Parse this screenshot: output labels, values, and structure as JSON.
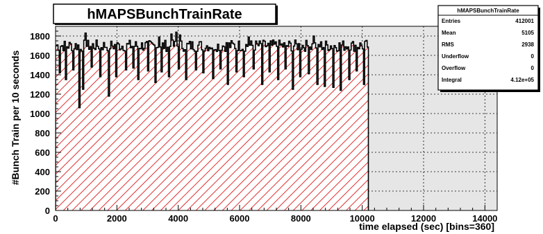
{
  "chart_data": {
    "type": "histogram",
    "title": "hMAPSBunchTrainRate",
    "xlabel": "time elapsed (sec) [bins=360]",
    "ylabel": "#Bunch Train per 10 seconds",
    "xlim": [
      0,
      14400
    ],
    "ylim": [
      0,
      1900
    ],
    "x_ticks": [
      0,
      2000,
      4000,
      6000,
      8000,
      10000,
      12000,
      14000
    ],
    "y_ticks": [
      0,
      200,
      400,
      600,
      800,
      1000,
      1200,
      1400,
      1600,
      1800
    ],
    "bin_width": 40,
    "data_end": 10200,
    "grid": true,
    "fill": "red hatched",
    "baseline": 1700,
    "dips": [
      {
        "x": 120,
        "y": 1420
      },
      {
        "x": 320,
        "y": 1350
      },
      {
        "x": 560,
        "y": 1450
      },
      {
        "x": 760,
        "y": 1060
      },
      {
        "x": 900,
        "y": 1250
      },
      {
        "x": 1180,
        "y": 1480
      },
      {
        "x": 1460,
        "y": 1380
      },
      {
        "x": 1720,
        "y": 1180
      },
      {
        "x": 1960,
        "y": 1380
      },
      {
        "x": 2280,
        "y": 1450
      },
      {
        "x": 2520,
        "y": 1470
      },
      {
        "x": 2700,
        "y": 1350
      },
      {
        "x": 3000,
        "y": 1440
      },
      {
        "x": 3240,
        "y": 1320
      },
      {
        "x": 3460,
        "y": 1430
      },
      {
        "x": 3700,
        "y": 1380
      },
      {
        "x": 4000,
        "y": 1460
      },
      {
        "x": 4240,
        "y": 1350
      },
      {
        "x": 4560,
        "y": 1450
      },
      {
        "x": 4800,
        "y": 1420
      },
      {
        "x": 5120,
        "y": 1360
      },
      {
        "x": 5360,
        "y": 1460
      },
      {
        "x": 5620,
        "y": 1300
      },
      {
        "x": 5880,
        "y": 1430
      },
      {
        "x": 6120,
        "y": 1380
      },
      {
        "x": 6440,
        "y": 1460
      },
      {
        "x": 6720,
        "y": 1300
      },
      {
        "x": 6960,
        "y": 1430
      },
      {
        "x": 7240,
        "y": 1350
      },
      {
        "x": 7480,
        "y": 1460
      },
      {
        "x": 7720,
        "y": 1250
      },
      {
        "x": 7960,
        "y": 1380
      },
      {
        "x": 8240,
        "y": 1410
      },
      {
        "x": 8520,
        "y": 1300
      },
      {
        "x": 8760,
        "y": 1280
      },
      {
        "x": 9040,
        "y": 1270
      },
      {
        "x": 9280,
        "y": 1240
      },
      {
        "x": 9560,
        "y": 1350
      },
      {
        "x": 9800,
        "y": 1440
      },
      {
        "x": 10040,
        "y": 1300
      }
    ],
    "spikes": [
      {
        "x": 960,
        "y": 1830
      },
      {
        "x": 3760,
        "y": 1820
      },
      {
        "x": 3920,
        "y": 1840
      },
      {
        "x": 4040,
        "y": 1810
      },
      {
        "x": 3360,
        "y": 1790
      },
      {
        "x": 8400,
        "y": 1800
      },
      {
        "x": 6280,
        "y": 1790
      }
    ]
  },
  "stats_box": {
    "title": "hMAPSBunchTrainRate",
    "rows": [
      {
        "label": "Entries",
        "value": "412001"
      },
      {
        "label": "Mean",
        "value": "5105"
      },
      {
        "label": "RMS",
        "value": "2938"
      },
      {
        "label": "Underflow",
        "value": "0"
      },
      {
        "label": "Overflow",
        "value": "0"
      },
      {
        "label": "Integral",
        "value": "4.12e+05"
      }
    ]
  },
  "colors": {
    "frame_bg": "#e6e6e6",
    "hatch": "#e03030",
    "hist_fill_bg": "#ffffff",
    "grid": "#000000",
    "line": "#000000"
  }
}
